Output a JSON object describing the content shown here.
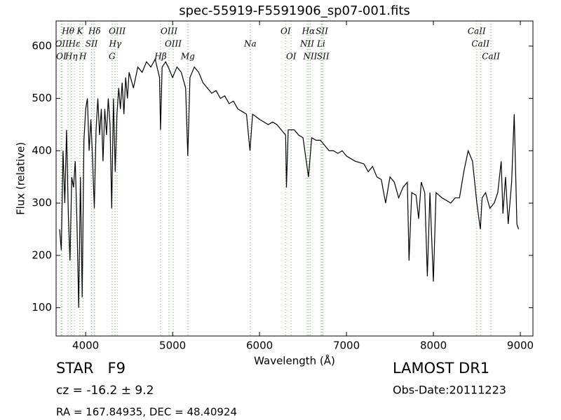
{
  "chart_data": {
    "type": "line",
    "title": "spec-55919-F5591906_sp07-001.fits",
    "x_label": "Wavelength (Å)",
    "y_label": "Flux (relative)",
    "xlim": [
      3660,
      9145
    ],
    "ylim": [
      46,
      648
    ],
    "xticks": [
      4000,
      5000,
      6000,
      7000,
      8000,
      9000
    ],
    "yticks": [
      100,
      200,
      300,
      400,
      500,
      600
    ],
    "series": [
      {
        "color": "#000000",
        "x": [
          3700,
          3720,
          3740,
          3760,
          3780,
          3800,
          3820,
          3840,
          3860,
          3880,
          3900,
          3920,
          3940,
          3960,
          3980,
          4000,
          4020,
          4040,
          4060,
          4080,
          4100,
          4120,
          4140,
          4160,
          4180,
          4200,
          4220,
          4240,
          4260,
          4280,
          4300,
          4320,
          4340,
          4360,
          4380,
          4400,
          4420,
          4440,
          4460,
          4480,
          4500,
          4550,
          4600,
          4650,
          4700,
          4750,
          4800,
          4850,
          4861,
          4880,
          4920,
          4950,
          5000,
          5050,
          5100,
          5150,
          5175,
          5200,
          5250,
          5300,
          5350,
          5400,
          5450,
          5500,
          5550,
          5600,
          5650,
          5700,
          5750,
          5800,
          5850,
          5890,
          5920,
          6000,
          6050,
          6100,
          6150,
          6200,
          6250,
          6300,
          6310,
          6330,
          6400,
          6450,
          6500,
          6563,
          6600,
          6650,
          6700,
          6750,
          6800,
          6850,
          6900,
          6950,
          7000,
          7100,
          7200,
          7250,
          7300,
          7350,
          7400,
          7450,
          7500,
          7550,
          7600,
          7650,
          7700,
          7720,
          7750,
          7800,
          7830,
          7860,
          7900,
          7930,
          7960,
          8000,
          8030,
          8100,
          8150,
          8200,
          8250,
          8300,
          8350,
          8400,
          8450,
          8500,
          8540,
          8560,
          8600,
          8650,
          8700,
          8740,
          8780,
          8800,
          8830,
          8860,
          8900,
          8930,
          8960,
          8980
        ],
        "values": [
          250,
          210,
          400,
          300,
          440,
          280,
          190,
          350,
          330,
          380,
          260,
          100,
          350,
          120,
          420,
          480,
          500,
          400,
          460,
          380,
          290,
          440,
          500,
          430,
          480,
          380,
          480,
          430,
          500,
          450,
          290,
          500,
          360,
          470,
          520,
          480,
          530,
          470,
          540,
          500,
          550,
          520,
          560,
          550,
          570,
          560,
          575,
          540,
          440,
          560,
          570,
          560,
          540,
          560,
          550,
          520,
          390,
          540,
          560,
          550,
          530,
          520,
          510,
          515,
          500,
          505,
          490,
          495,
          480,
          475,
          470,
          400,
          470,
          460,
          455,
          450,
          455,
          450,
          440,
          430,
          330,
          440,
          440,
          430,
          425,
          350,
          425,
          420,
          420,
          410,
          400,
          400,
          395,
          400,
          390,
          380,
          375,
          360,
          370,
          350,
          345,
          300,
          350,
          340,
          310,
          330,
          340,
          190,
          320,
          315,
          270,
          340,
          320,
          160,
          320,
          150,
          320,
          310,
          305,
          300,
          310,
          310,
          360,
          400,
          380,
          300,
          250,
          310,
          320,
          290,
          300,
          320,
          380,
          280,
          350,
          260,
          340,
          470,
          260,
          250
        ]
      }
    ],
    "lines": [
      {
        "label": "Hθ",
        "wavelength": 3798
      },
      {
        "label": "K",
        "wavelength": 3934
      },
      {
        "label": "Hδ",
        "wavelength": 4102
      },
      {
        "label": "OIII",
        "wavelength": 4363
      },
      {
        "label": "OIII",
        "wavelength": 4959
      },
      {
        "label": "OI",
        "wavelength": 6300
      },
      {
        "label": "Hα",
        "wavelength": 6563
      },
      {
        "label": "SII",
        "wavelength": 6717
      },
      {
        "label": "CaII",
        "wavelength": 8498
      },
      {
        "label": "OII",
        "wavelength": 3727
      },
      {
        "label": "Hε",
        "wavelength": 3870
      },
      {
        "label": "SII",
        "wavelength": 4068
      },
      {
        "label": "Hγ",
        "wavelength": 4340
      },
      {
        "label": "OIII",
        "wavelength": 5007
      },
      {
        "label": "Na",
        "wavelength": 5893
      },
      {
        "label": "NII",
        "wavelength": 6548
      },
      {
        "label": "Li",
        "wavelength": 6708
      },
      {
        "label": "CaII",
        "wavelength": 8542
      },
      {
        "label": "OI",
        "wavelength": 3720
      },
      {
        "label": "Hη",
        "wavelength": 3835
      },
      {
        "label": "H",
        "wavelength": 3968
      },
      {
        "label": "G",
        "wavelength": 4304
      },
      {
        "label": "Hβ",
        "wavelength": 4861
      },
      {
        "label": "Mg",
        "wavelength": 5175
      },
      {
        "label": "OI",
        "wavelength": 6364
      },
      {
        "label": "NII",
        "wavelength": 6583
      },
      {
        "label": "SII",
        "wavelength": 6731
      },
      {
        "label": "CaII",
        "wavelength": 8662
      }
    ],
    "line_color": "#66bb66",
    "object": "STAR   F9",
    "redshift": "cz = -16.2 ± 9.2",
    "coords": "RA = 167.84935, DEC = 48.40924",
    "survey": "LAMOST DR1",
    "obs_date": "Obs-Date:20111223"
  }
}
